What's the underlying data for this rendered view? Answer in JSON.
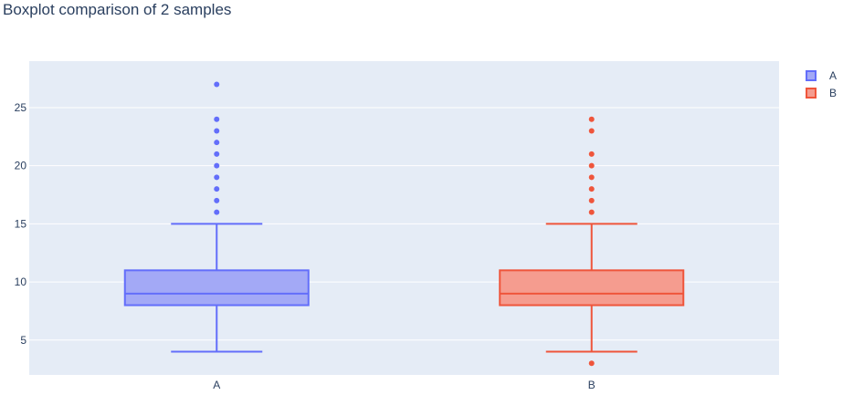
{
  "chart_data": {
    "type": "box",
    "title": "Boxplot comparison of 2 samples",
    "xlabel": "",
    "ylabel": "",
    "categories": [
      "A",
      "B"
    ],
    "ylim": [
      2,
      29
    ],
    "yticks": [
      5,
      10,
      15,
      20,
      25
    ],
    "grid": true,
    "legend_position": "top-right",
    "series": [
      {
        "name": "A",
        "category": "A",
        "color": "#636efa",
        "fill": "#a3a9f6",
        "lower_whisker": 4,
        "q1": 8,
        "median": 9,
        "q3": 11,
        "upper_whisker": 15,
        "outliers": [
          16,
          17,
          18,
          19,
          20,
          21,
          22,
          23,
          24,
          27
        ]
      },
      {
        "name": "B",
        "category": "B",
        "color": "#ef553b",
        "fill": "#f59c8f",
        "lower_whisker": 4,
        "q1": 8,
        "median": 9,
        "q3": 11,
        "upper_whisker": 15,
        "outliers": [
          3,
          16,
          17,
          18,
          19,
          20,
          21,
          23,
          24
        ]
      }
    ]
  }
}
